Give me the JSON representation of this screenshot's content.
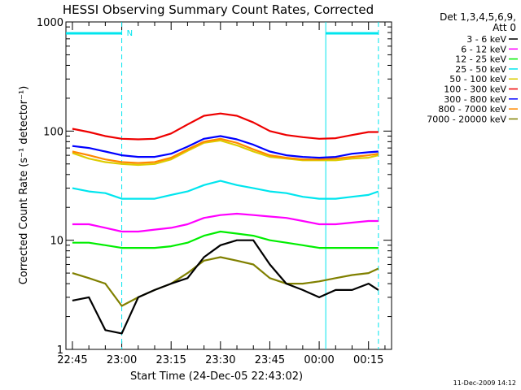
{
  "chart_data": {
    "type": "line",
    "title": "HESSI Observing Summary Count Rates, Corrected",
    "xlabel": "Start Time (24-Dec-05 22:43:02)",
    "ylabel": "Corrected Count Rate (s⁻¹ detector⁻¹)",
    "y_scale": "log",
    "ylim": [
      1,
      1000
    ],
    "xlim": [
      "22:43:02",
      "00:22:00"
    ],
    "x_ticks": [
      "22:45",
      "23:00",
      "23:15",
      "23:30",
      "23:45",
      "00:00",
      "00:15"
    ],
    "y_ticks": [
      "1",
      "10",
      "100",
      "1000"
    ],
    "legend_title": [
      "Det 1,3,4,5,6,9,",
      "Att 0"
    ],
    "legend_position": "right",
    "timestamp": "11-Dec-2009 14:12",
    "annotations": [
      {
        "text": "N",
        "at": "23:00"
      }
    ],
    "time_markers": [
      "23:00",
      "00:02",
      "00:18"
    ],
    "bars": [
      {
        "from": "22:43",
        "to": "23:00"
      },
      {
        "from": "00:02",
        "to": "00:18"
      }
    ],
    "series": [
      {
        "name": "3 - 6 keV",
        "color": "#000000",
        "x": [
          "22:45",
          "22:50",
          "22:55",
          "23:00",
          "23:05",
          "23:10",
          "23:15",
          "23:20",
          "23:25",
          "23:30",
          "23:35",
          "23:40",
          "23:45",
          "23:50",
          "23:55",
          "00:00",
          "00:05",
          "00:10",
          "00:15",
          "00:18"
        ],
        "values": [
          2.8,
          3.0,
          1.5,
          1.4,
          3.0,
          3.5,
          4.0,
          4.5,
          7.0,
          9.0,
          10.0,
          10.0,
          6.0,
          4.0,
          3.5,
          3.0,
          3.5,
          3.5,
          4.0,
          3.5
        ]
      },
      {
        "name": "6 - 12 keV",
        "color": "#ff00ff",
        "x": [
          "22:45",
          "22:50",
          "22:55",
          "23:00",
          "23:05",
          "23:10",
          "23:15",
          "23:20",
          "23:25",
          "23:30",
          "23:35",
          "23:40",
          "23:45",
          "23:50",
          "23:55",
          "00:00",
          "00:05",
          "00:10",
          "00:15",
          "00:18"
        ],
        "values": [
          14,
          14,
          13,
          12,
          12,
          12.5,
          13,
          14,
          16,
          17,
          17.5,
          17,
          16.5,
          16,
          15,
          14,
          14,
          14.5,
          15,
          15
        ]
      },
      {
        "name": "12 - 25 keV",
        "color": "#00ee00",
        "x": [
          "22:45",
          "22:50",
          "22:55",
          "23:00",
          "23:05",
          "23:10",
          "23:15",
          "23:20",
          "23:25",
          "23:30",
          "23:35",
          "23:40",
          "23:45",
          "23:50",
          "23:55",
          "00:00",
          "00:05",
          "00:10",
          "00:15",
          "00:18"
        ],
        "values": [
          9.5,
          9.5,
          9.0,
          8.5,
          8.5,
          8.5,
          8.8,
          9.5,
          11,
          12,
          11.5,
          11,
          10,
          9.5,
          9,
          8.5,
          8.5,
          8.5,
          8.5,
          8.5
        ]
      },
      {
        "name": "25 - 50 keV",
        "color": "#00e5ee",
        "x": [
          "22:45",
          "22:50",
          "22:55",
          "23:00",
          "23:05",
          "23:10",
          "23:15",
          "23:20",
          "23:25",
          "23:30",
          "23:35",
          "23:40",
          "23:45",
          "23:50",
          "23:55",
          "00:00",
          "00:05",
          "00:10",
          "00:15",
          "00:18"
        ],
        "values": [
          30,
          28,
          27,
          24,
          24,
          24,
          26,
          28,
          32,
          35,
          32,
          30,
          28,
          27,
          25,
          24,
          24,
          25,
          26,
          28
        ]
      },
      {
        "name": "50 - 100 keV",
        "color": "#ddcc00",
        "x": [
          "22:45",
          "22:50",
          "22:55",
          "23:00",
          "23:05",
          "23:10",
          "23:15",
          "23:20",
          "23:25",
          "23:30",
          "23:35",
          "23:40",
          "23:45",
          "23:50",
          "23:55",
          "00:00",
          "00:05",
          "00:10",
          "00:15",
          "00:18"
        ],
        "values": [
          63,
          56,
          52,
          50,
          49,
          50,
          55,
          66,
          78,
          82,
          74,
          65,
          58,
          56,
          54,
          54,
          54,
          56,
          57,
          60
        ]
      },
      {
        "name": "100 - 300 keV",
        "color": "#ee0000",
        "x": [
          "22:45",
          "22:50",
          "22:55",
          "23:00",
          "23:05",
          "23:10",
          "23:15",
          "23:20",
          "23:25",
          "23:30",
          "23:35",
          "23:40",
          "23:45",
          "23:50",
          "23:55",
          "00:00",
          "00:05",
          "00:10",
          "00:15",
          "00:18"
        ],
        "values": [
          105,
          98,
          90,
          85,
          84,
          85,
          95,
          115,
          138,
          145,
          138,
          120,
          100,
          92,
          88,
          85,
          86,
          92,
          98,
          98
        ]
      },
      {
        "name": "300 - 800 keV",
        "color": "#0000ff",
        "x": [
          "22:45",
          "22:50",
          "22:55",
          "23:00",
          "23:05",
          "23:10",
          "23:15",
          "23:20",
          "23:25",
          "23:30",
          "23:35",
          "23:40",
          "23:45",
          "23:50",
          "23:55",
          "00:00",
          "00:05",
          "00:10",
          "00:15",
          "00:18"
        ],
        "values": [
          73,
          70,
          65,
          60,
          58,
          58,
          62,
          72,
          85,
          90,
          84,
          75,
          65,
          60,
          58,
          57,
          58,
          62,
          64,
          65
        ]
      },
      {
        "name": "800 - 7000 keV",
        "color": "#ff8800",
        "x": [
          "22:45",
          "22:50",
          "22:55",
          "23:00",
          "23:05",
          "23:10",
          "23:15",
          "23:20",
          "23:25",
          "23:30",
          "23:35",
          "23:40",
          "23:45",
          "23:50",
          "23:55",
          "00:00",
          "00:05",
          "00:10",
          "00:15",
          "00:18"
        ],
        "values": [
          65,
          60,
          55,
          52,
          51,
          52,
          57,
          68,
          80,
          85,
          78,
          68,
          60,
          57,
          55,
          55,
          56,
          58,
          60,
          62
        ]
      },
      {
        "name": "7000 - 20000 keV",
        "color": "#808000",
        "x": [
          "22:45",
          "22:50",
          "22:55",
          "23:00",
          "23:05",
          "23:10",
          "23:15",
          "23:20",
          "23:25",
          "23:30",
          "23:35",
          "23:40",
          "23:45",
          "23:50",
          "23:55",
          "00:00",
          "00:05",
          "00:10",
          "00:15",
          "00:18"
        ],
        "values": [
          5.0,
          4.5,
          4.0,
          2.5,
          3.0,
          3.5,
          4.0,
          5.0,
          6.5,
          7.0,
          6.5,
          6.0,
          4.5,
          4.0,
          4.0,
          4.2,
          4.5,
          4.8,
          5.0,
          5.5
        ]
      }
    ]
  }
}
